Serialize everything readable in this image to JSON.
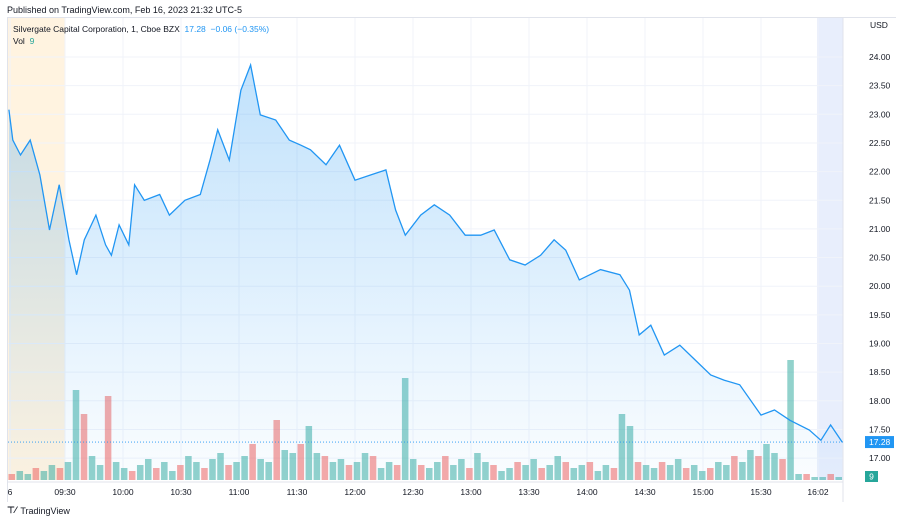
{
  "header": {
    "published": "Published on TradingView.com, Feb 16, 2023 21:32 UTC-5"
  },
  "legend": {
    "symbol": "Silvergate Capital Corporation, 1, Cboe BZX",
    "last": "17.28",
    "change": "−0.06 (−0.35%)",
    "vol_label": "Vol",
    "vol_value": "9"
  },
  "brand": {
    "name": "TradingView",
    "logo_text": "17"
  },
  "colors": {
    "line": "#2196f3",
    "up": "#26a69a",
    "down": "#ef5350",
    "premarket": "#fff3e0",
    "postmarket": "#e8eefc"
  },
  "chart_data": {
    "type": "area",
    "currency": "USD",
    "ylim": [
      16.8,
      24.4
    ],
    "yticks": [
      "24.00",
      "23.50",
      "23.00",
      "22.50",
      "22.00",
      "21.50",
      "21.00",
      "20.50",
      "20.00",
      "19.50",
      "19.00",
      "18.50",
      "18.00",
      "17.50",
      "17.00"
    ],
    "xticks": [
      "6",
      "09:30",
      "10:00",
      "10:30",
      "11:00",
      "11:30",
      "12:00",
      "12:30",
      "13:00",
      "13:30",
      "14:00",
      "14:30",
      "15:00",
      "15:30",
      "16:02"
    ],
    "last_price": "17.28",
    "last_volume": "9",
    "series": [
      [
        "09:01",
        23.08
      ],
      [
        "09:03",
        22.55
      ],
      [
        "09:07",
        22.29
      ],
      [
        "09:12",
        22.55
      ],
      [
        "09:17",
        21.94
      ],
      [
        "09:22",
        20.98
      ],
      [
        "09:27",
        21.77
      ],
      [
        "09:32",
        20.81
      ],
      [
        "09:36",
        20.2
      ],
      [
        "09:40",
        20.81
      ],
      [
        "09:46",
        21.24
      ],
      [
        "09:51",
        20.72
      ],
      [
        "09:54",
        20.54
      ],
      [
        "09:58",
        21.07
      ],
      [
        "10:03",
        20.72
      ],
      [
        "10:06",
        21.77
      ],
      [
        "10:11",
        21.5
      ],
      [
        "10:19",
        21.6
      ],
      [
        "10:24",
        21.24
      ],
      [
        "10:32",
        21.5
      ],
      [
        "10:40",
        21.6
      ],
      [
        "10:45",
        22.2
      ],
      [
        "10:49",
        22.73
      ],
      [
        "10:55",
        22.2
      ],
      [
        "11:01",
        23.42
      ],
      [
        "11:06",
        23.86
      ],
      [
        "11:11",
        22.99
      ],
      [
        "11:19",
        22.9
      ],
      [
        "11:26",
        22.55
      ],
      [
        "11:32",
        22.46
      ],
      [
        "11:37",
        22.38
      ],
      [
        "11:45",
        22.12
      ],
      [
        "11:52",
        22.46
      ],
      [
        "12:00",
        21.85
      ],
      [
        "12:08",
        21.94
      ],
      [
        "12:16",
        22.03
      ],
      [
        "12:21",
        21.33
      ],
      [
        "12:26",
        20.89
      ],
      [
        "12:34",
        21.24
      ],
      [
        "12:41",
        21.42
      ],
      [
        "12:49",
        21.24
      ],
      [
        "12:57",
        20.89
      ],
      [
        "13:05",
        20.89
      ],
      [
        "13:12",
        20.98
      ],
      [
        "13:20",
        20.46
      ],
      [
        "13:28",
        20.37
      ],
      [
        "13:36",
        20.54
      ],
      [
        "13:43",
        20.81
      ],
      [
        "13:49",
        20.63
      ],
      [
        "13:56",
        20.11
      ],
      [
        "14:07",
        20.29
      ],
      [
        "14:17",
        20.2
      ],
      [
        "14:22",
        19.93
      ],
      [
        "14:27",
        19.15
      ],
      [
        "14:33",
        19.32
      ],
      [
        "14:40",
        18.8
      ],
      [
        "14:48",
        18.97
      ],
      [
        "14:56",
        18.71
      ],
      [
        "15:04",
        18.45
      ],
      [
        "15:11",
        18.36
      ],
      [
        "15:19",
        18.28
      ],
      [
        "15:30",
        17.75
      ],
      [
        "15:37",
        17.84
      ],
      [
        "15:45",
        17.66
      ],
      [
        "15:55",
        17.49
      ],
      [
        "16:01",
        17.31
      ],
      [
        "16:06",
        17.58
      ],
      [
        "16:12",
        17.28
      ]
    ],
    "volume": [
      2,
      3,
      2,
      4,
      3,
      5,
      4,
      6,
      30,
      22,
      8,
      5,
      28,
      6,
      4,
      3,
      5,
      7,
      4,
      6,
      3,
      5,
      8,
      6,
      4,
      7,
      9,
      5,
      6,
      8,
      12,
      7,
      6,
      20,
      10,
      9,
      12,
      18,
      9,
      8,
      6,
      7,
      5,
      6,
      9,
      8,
      4,
      6,
      5,
      34,
      7,
      5,
      4,
      6,
      8,
      5,
      7,
      4,
      9,
      6,
      5,
      3,
      4,
      6,
      5,
      7,
      4,
      5,
      8,
      6,
      4,
      5,
      6,
      3,
      5,
      4,
      22,
      18,
      6,
      5,
      4,
      6,
      5,
      7,
      4,
      5,
      3,
      4,
      6,
      5,
      8,
      6,
      10,
      8,
      12,
      9,
      7,
      40,
      2,
      2,
      1,
      1,
      2,
      1
    ]
  }
}
